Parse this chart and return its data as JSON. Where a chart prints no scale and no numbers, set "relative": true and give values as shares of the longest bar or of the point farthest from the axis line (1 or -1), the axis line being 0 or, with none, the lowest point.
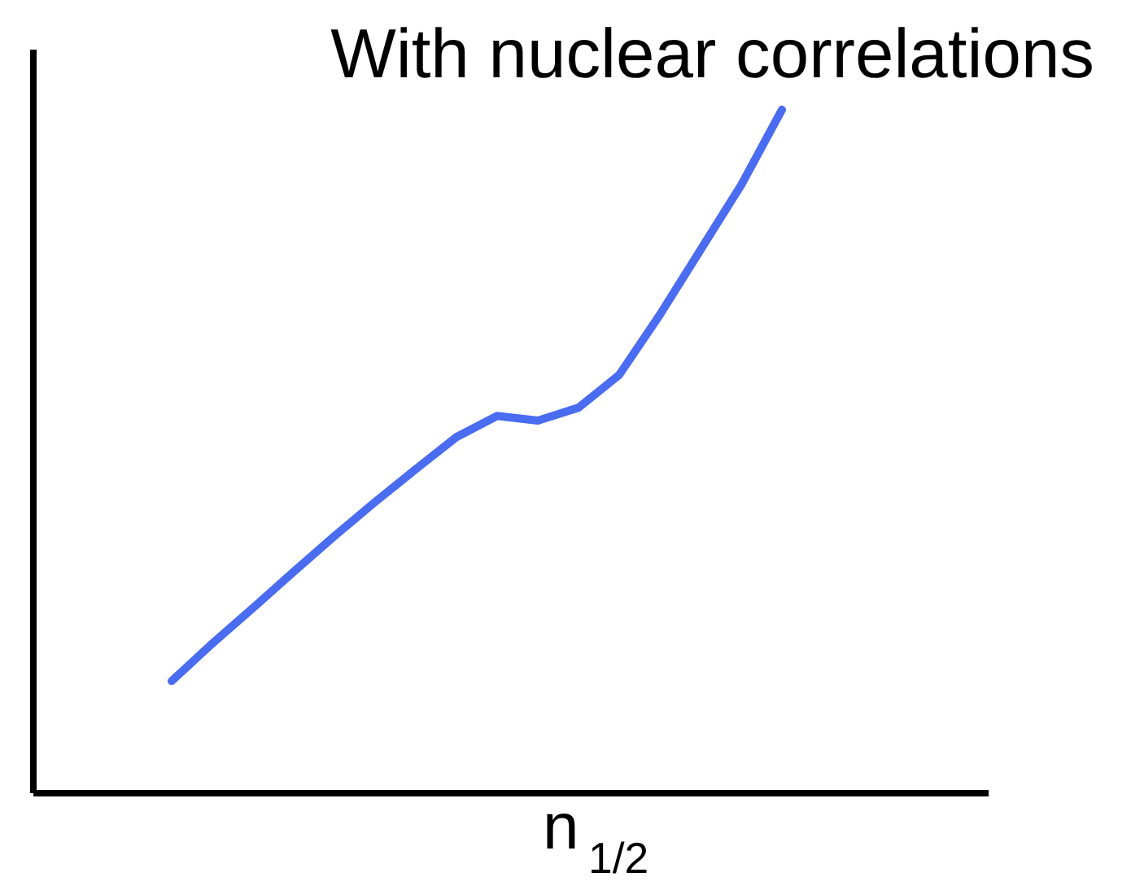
{
  "chart_data": {
    "type": "line",
    "title": "With nuclear correlations",
    "xlabel": "n$_{1/2}$",
    "relative": true,
    "grid": false,
    "legend": false,
    "marker": "none",
    "line_style": "solid",
    "categories": [
      null,
      null,
      null,
      null,
      null,
      null,
      null,
      null,
      null,
      null,
      null,
      null,
      null,
      null,
      null,
      null
    ],
    "series": [
      {
        "color": "#4a6cf0",
        "values": [
          0.164,
          0.219,
          0.271,
          0.324,
          0.376,
          0.426,
          0.474,
          0.521,
          0.552,
          0.545,
          0.564,
          0.612,
          0.7,
          0.795,
          0.89,
          1.0
        ]
      }
    ]
  }
}
